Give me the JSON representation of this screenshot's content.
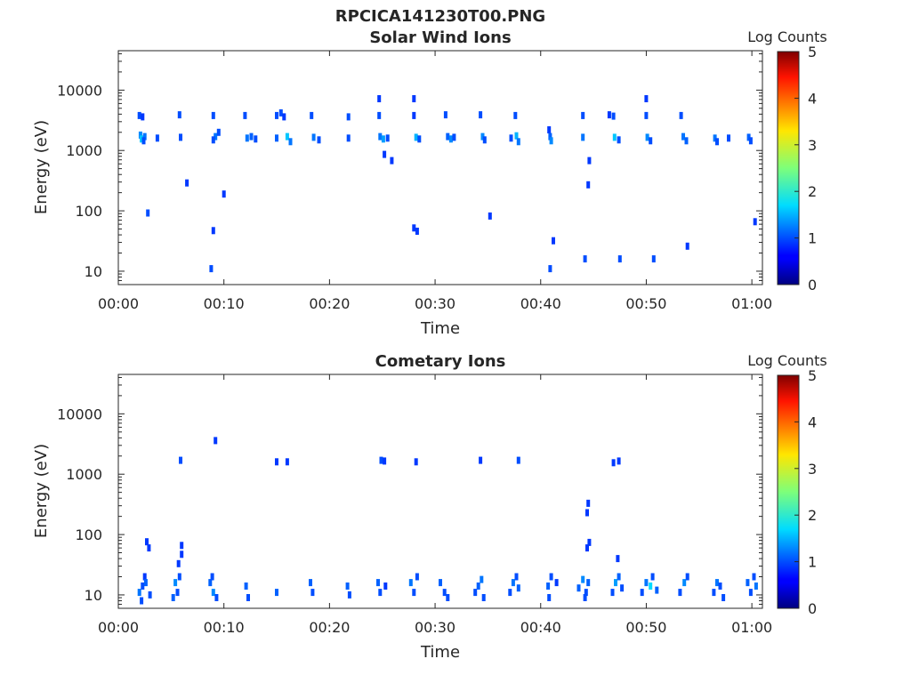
{
  "figure": {
    "title": "RPCICA141230T00.PNG"
  },
  "chart_data": [
    {
      "type": "heatmap",
      "title": "Solar Wind Ions",
      "xlabel": "Time",
      "ylabel": "Energy (eV)",
      "x_scale": "time",
      "y_scale": "log",
      "xlim": [
        "00:00",
        "01:01"
      ],
      "ylim": [
        6,
        45000
      ],
      "x_ticks": [
        "00:00",
        "00:10",
        "00:20",
        "00:30",
        "00:40",
        "00:50",
        "01:00"
      ],
      "y_ticks": [
        "10",
        "100",
        "1000",
        "10000"
      ],
      "colorbar": {
        "label": "Log Counts",
        "range": [
          0,
          5
        ],
        "ticks": [
          "0",
          "1",
          "2",
          "3",
          "4",
          "5"
        ],
        "colormap": "jet"
      },
      "cell_units": "minute, energy eV, log counts",
      "cells": [
        [
          2.0,
          3800,
          1.0
        ],
        [
          2.3,
          3600,
          0.9
        ],
        [
          2.1,
          1800,
          1.3
        ],
        [
          2.2,
          1550,
          1.6
        ],
        [
          2.5,
          1700,
          1.2
        ],
        [
          2.4,
          1450,
          1.0
        ],
        [
          3.7,
          1600,
          1.0
        ],
        [
          5.8,
          3900,
          1.0
        ],
        [
          5.9,
          1650,
          1.0
        ],
        [
          6.5,
          290,
          0.9
        ],
        [
          9.0,
          3800,
          1.0
        ],
        [
          9.2,
          1700,
          1.2
        ],
        [
          9.5,
          2000,
          1.0
        ],
        [
          9.0,
          1500,
          1.0
        ],
        [
          10.0,
          190,
          0.9
        ],
        [
          12.0,
          3800,
          1.0
        ],
        [
          12.2,
          1600,
          1.2
        ],
        [
          12.6,
          1700,
          1.1
        ],
        [
          13.0,
          1550,
          1.0
        ],
        [
          15.0,
          3800,
          1.0
        ],
        [
          15.4,
          4200,
          1.0
        ],
        [
          15.0,
          1600,
          1.1
        ],
        [
          16.0,
          1700,
          1.6
        ],
        [
          16.3,
          1400,
          1.2
        ],
        [
          15.7,
          3600,
          0.9
        ],
        [
          18.3,
          3800,
          1.0
        ],
        [
          18.5,
          1650,
          1.2
        ],
        [
          19.0,
          1500,
          1.0
        ],
        [
          21.8,
          3600,
          1.0
        ],
        [
          21.8,
          1600,
          1.0
        ],
        [
          24.7,
          7200,
          0.9
        ],
        [
          24.7,
          3800,
          1.0
        ],
        [
          24.8,
          1700,
          1.2
        ],
        [
          25.1,
          1550,
          1.4
        ],
        [
          25.5,
          1600,
          1.0
        ],
        [
          25.2,
          860,
          0.9
        ],
        [
          25.9,
          680,
          0.9
        ],
        [
          28.0,
          7200,
          0.9
        ],
        [
          28.0,
          3800,
          0.9
        ],
        [
          28.2,
          1650,
          1.5
        ],
        [
          28.5,
          1550,
          1.0
        ],
        [
          28.0,
          52,
          0.9
        ],
        [
          28.3,
          46,
          0.9
        ],
        [
          31.0,
          3900,
          1.0
        ],
        [
          31.2,
          1700,
          1.1
        ],
        [
          31.5,
          1550,
          1.3
        ],
        [
          31.8,
          1650,
          1.0
        ],
        [
          34.3,
          3900,
          1.0
        ],
        [
          34.5,
          1700,
          1.3
        ],
        [
          34.7,
          1500,
          1.0
        ],
        [
          35.2,
          82,
          0.9
        ],
        [
          37.6,
          3800,
          1.0
        ],
        [
          37.2,
          1600,
          1.0
        ],
        [
          37.7,
          1750,
          1.5
        ],
        [
          37.9,
          1400,
          1.2
        ],
        [
          40.8,
          2200,
          0.9
        ],
        [
          40.9,
          1700,
          1.1
        ],
        [
          41.0,
          1450,
          1.3
        ],
        [
          41.2,
          32,
          0.9
        ],
        [
          40.9,
          11,
          1.0
        ],
        [
          44.0,
          3800,
          1.0
        ],
        [
          44.0,
          1650,
          1.2
        ],
        [
          44.2,
          16,
          1.0
        ],
        [
          44.6,
          680,
          0.9
        ],
        [
          44.5,
          270,
          0.9
        ],
        [
          46.5,
          3900,
          0.9
        ],
        [
          46.9,
          3700,
          1.0
        ],
        [
          47.0,
          1650,
          1.6
        ],
        [
          47.4,
          1500,
          1.0
        ],
        [
          47.5,
          16,
          1.0
        ],
        [
          50.0,
          7200,
          0.9
        ],
        [
          50.0,
          3800,
          1.0
        ],
        [
          50.1,
          1650,
          1.3
        ],
        [
          50.4,
          1450,
          1.0
        ],
        [
          50.7,
          16,
          1.0
        ],
        [
          53.3,
          3800,
          1.0
        ],
        [
          53.5,
          1700,
          1.2
        ],
        [
          53.8,
          1450,
          1.1
        ],
        [
          53.9,
          26,
          0.9
        ],
        [
          56.5,
          1600,
          1.2
        ],
        [
          56.7,
          1400,
          1.0
        ],
        [
          57.8,
          1600,
          1.0
        ],
        [
          59.7,
          1650,
          1.1
        ],
        [
          59.9,
          1450,
          1.0
        ],
        [
          60.3,
          66,
          0.9
        ],
        [
          2.8,
          92,
          1.0
        ],
        [
          9.0,
          47,
          0.9
        ],
        [
          8.8,
          11,
          1.0
        ]
      ]
    },
    {
      "type": "heatmap",
      "title": "Cometary Ions",
      "xlabel": "Time",
      "ylabel": "Energy (eV)",
      "x_scale": "time",
      "y_scale": "log",
      "xlim": [
        "00:00",
        "01:01"
      ],
      "ylim": [
        6,
        45000
      ],
      "x_ticks": [
        "00:00",
        "00:10",
        "00:20",
        "00:30",
        "00:40",
        "00:50",
        "01:00"
      ],
      "y_ticks": [
        "10",
        "100",
        "1000",
        "10000"
      ],
      "colorbar": {
        "label": "Log Counts",
        "range": [
          0,
          5
        ],
        "ticks": [
          "0",
          "1",
          "2",
          "3",
          "4",
          "5"
        ],
        "colormap": "jet"
      },
      "cell_units": "minute, energy eV, log counts",
      "cells": [
        [
          2.5,
          20,
          0.9
        ],
        [
          2.3,
          14,
          1.0
        ],
        [
          2.0,
          11,
          1.2
        ],
        [
          2.2,
          8,
          1.0
        ],
        [
          2.6,
          16,
          1.1
        ],
        [
          3.0,
          10,
          1.0
        ],
        [
          2.7,
          76,
          0.9
        ],
        [
          2.9,
          60,
          0.9
        ],
        [
          5.4,
          16,
          1.3
        ],
        [
          5.6,
          11,
          1.0
        ],
        [
          5.8,
          20,
          1.0
        ],
        [
          5.2,
          9,
          1.1
        ],
        [
          5.7,
          33,
          0.9
        ],
        [
          6.0,
          47,
          0.9
        ],
        [
          6.0,
          66,
          0.9
        ],
        [
          5.9,
          1700,
          1.0
        ],
        [
          8.7,
          16,
          1.1
        ],
        [
          9.0,
          11,
          1.3
        ],
        [
          8.9,
          20,
          1.0
        ],
        [
          9.3,
          9,
          1.0
        ],
        [
          9.2,
          3600,
          0.9
        ],
        [
          12.1,
          14,
          1.1
        ],
        [
          12.3,
          9,
          1.0
        ],
        [
          15.0,
          11,
          1.1
        ],
        [
          15.0,
          1600,
          0.9
        ],
        [
          16.0,
          1600,
          0.9
        ],
        [
          18.2,
          16,
          1.1
        ],
        [
          18.4,
          11,
          1.0
        ],
        [
          21.7,
          14,
          1.1
        ],
        [
          21.9,
          10,
          1.0
        ],
        [
          24.6,
          16,
          1.1
        ],
        [
          24.8,
          11,
          1.0
        ],
        [
          25.3,
          14,
          0.9
        ],
        [
          24.9,
          1700,
          1.0
        ],
        [
          25.2,
          1650,
          0.9
        ],
        [
          27.7,
          16,
          1.2
        ],
        [
          28.0,
          11,
          1.0
        ],
        [
          28.3,
          20,
          1.0
        ],
        [
          28.2,
          1600,
          0.9
        ],
        [
          30.5,
          16,
          1.1
        ],
        [
          30.9,
          11,
          1.0
        ],
        [
          31.2,
          9,
          1.0
        ],
        [
          33.8,
          11,
          1.0
        ],
        [
          34.1,
          14,
          1.1
        ],
        [
          34.4,
          18,
          1.2
        ],
        [
          34.6,
          9,
          1.0
        ],
        [
          34.3,
          1700,
          0.9
        ],
        [
          37.1,
          11,
          1.0
        ],
        [
          37.4,
          16,
          1.2
        ],
        [
          37.7,
          20,
          1.0
        ],
        [
          37.9,
          13,
          1.1
        ],
        [
          37.9,
          1700,
          1.0
        ],
        [
          40.7,
          14,
          1.1
        ],
        [
          41.0,
          20,
          1.0
        ],
        [
          40.8,
          9,
          1.0
        ],
        [
          41.5,
          16,
          0.9
        ],
        [
          43.6,
          13,
          1.1
        ],
        [
          44.0,
          18,
          1.3
        ],
        [
          44.3,
          11,
          1.0
        ],
        [
          44.5,
          16,
          1.1
        ],
        [
          44.2,
          9,
          1.0
        ],
        [
          44.5,
          330,
          0.9
        ],
        [
          44.4,
          230,
          0.9
        ],
        [
          44.6,
          74,
          0.9
        ],
        [
          44.4,
          60,
          0.9
        ],
        [
          46.8,
          11,
          1.0
        ],
        [
          47.1,
          16,
          1.4
        ],
        [
          47.4,
          20,
          1.1
        ],
        [
          47.7,
          13,
          1.0
        ],
        [
          47.3,
          40,
          0.9
        ],
        [
          46.9,
          1550,
          0.9
        ],
        [
          47.4,
          1650,
          0.9
        ],
        [
          49.6,
          11,
          1.0
        ],
        [
          50.0,
          16,
          1.2
        ],
        [
          50.4,
          14,
          1.7
        ],
        [
          50.6,
          20,
          1.0
        ],
        [
          51.0,
          12,
          1.1
        ],
        [
          53.2,
          11,
          1.0
        ],
        [
          53.6,
          16,
          1.3
        ],
        [
          53.9,
          20,
          1.0
        ],
        [
          56.4,
          11,
          1.0
        ],
        [
          56.7,
          16,
          1.2
        ],
        [
          57.0,
          14,
          1.0
        ],
        [
          57.3,
          9,
          1.0
        ],
        [
          59.6,
          16,
          1.1
        ],
        [
          59.9,
          11,
          1.0
        ],
        [
          60.2,
          20,
          1.0
        ],
        [
          60.4,
          14,
          1.2
        ]
      ]
    }
  ]
}
